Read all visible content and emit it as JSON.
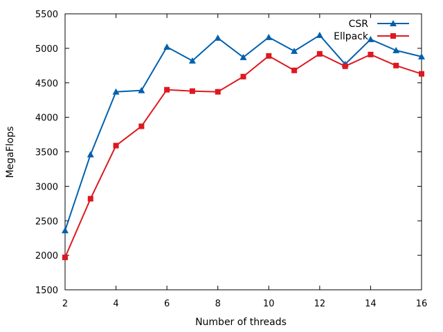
{
  "chart_data": {
    "type": "line",
    "title": "",
    "xlabel": "Number of threads",
    "ylabel": "MegaFlops",
    "xlim": [
      2,
      16
    ],
    "ylim": [
      1500,
      5500
    ],
    "xticks": [
      2,
      4,
      6,
      8,
      10,
      12,
      14,
      16
    ],
    "yticks": [
      1500,
      2000,
      2500,
      3000,
      3500,
      4000,
      4500,
      5000,
      5500
    ],
    "grid": false,
    "legend_position": "top-right",
    "x": [
      2,
      3,
      4,
      5,
      6,
      7,
      8,
      9,
      10,
      11,
      12,
      13,
      14,
      15,
      16
    ],
    "series": [
      {
        "name": "CSR",
        "color": "#0060ad",
        "marker": "triangle",
        "values": [
          2360,
          3460,
          4370,
          4390,
          5020,
          4820,
          5150,
          4870,
          5160,
          4960,
          5190,
          4770,
          5130,
          4970,
          4880
        ]
      },
      {
        "name": "Ellpack",
        "color": "#dd181f",
        "marker": "square",
        "values": [
          1970,
          2820,
          3590,
          3870,
          4400,
          4380,
          4370,
          4590,
          4890,
          4680,
          4920,
          4740,
          4910,
          4750,
          4630
        ]
      }
    ]
  }
}
